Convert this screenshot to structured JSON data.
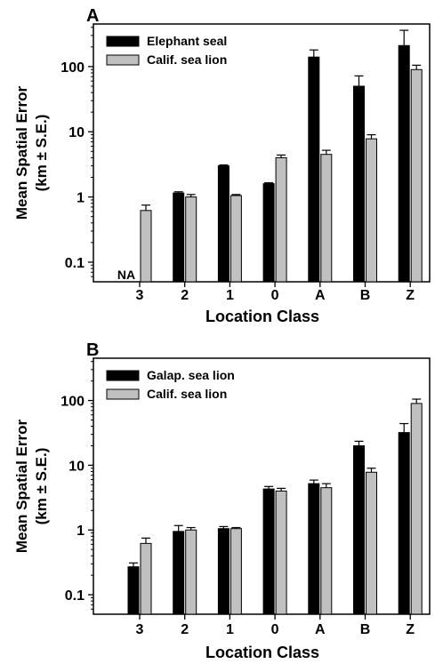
{
  "chart_data": [
    {
      "type": "bar",
      "panel_label": "A",
      "categories": [
        "3",
        "2",
        "1",
        "0",
        "A",
        "B",
        "Z"
      ],
      "xlabel": "Location Class",
      "ylabel": [
        "Mean Spatial Error",
        "(km ± S.E.)"
      ],
      "yscale": "log",
      "ylim": [
        0.05,
        450
      ],
      "yticks": [
        0.1,
        1,
        10,
        100
      ],
      "ytick_labels": [
        "0.1",
        "1",
        "10",
        "100"
      ],
      "legend_position": "top-left",
      "grid": false,
      "series": [
        {
          "name": "Elephant seal",
          "color": "#000000",
          "values": [
            null,
            1.15,
            3.0,
            1.6,
            140,
            50,
            210
          ],
          "errors": [
            null,
            0.05,
            0.1,
            0.05,
            40,
            22,
            150
          ]
        },
        {
          "name": "Calif. sea lion",
          "color": "#c0c0c0",
          "values": [
            0.62,
            1.0,
            1.05,
            4.0,
            4.5,
            7.8,
            90
          ],
          "errors": [
            0.13,
            0.09,
            0.04,
            0.4,
            0.7,
            1.2,
            15
          ]
        }
      ],
      "annotations": [
        {
          "category": "3",
          "series": "Elephant seal",
          "text": "NA"
        }
      ]
    },
    {
      "type": "bar",
      "panel_label": "B",
      "categories": [
        "3",
        "2",
        "1",
        "0",
        "A",
        "B",
        "Z"
      ],
      "xlabel": "Location Class",
      "ylabel": [
        "Mean Spatial Error",
        "(km ± S.E.)"
      ],
      "yscale": "log",
      "ylim": [
        0.05,
        450
      ],
      "yticks": [
        0.1,
        1,
        10,
        100
      ],
      "ytick_labels": [
        "0.1",
        "1",
        "10",
        "100"
      ],
      "legend_position": "top-left",
      "grid": false,
      "series": [
        {
          "name": "Galap. sea lion",
          "color": "#000000",
          "values": [
            0.27,
            0.95,
            1.05,
            4.3,
            5.2,
            20,
            32
          ],
          "errors": [
            0.04,
            0.22,
            0.08,
            0.4,
            0.7,
            3.5,
            12
          ]
        },
        {
          "name": "Calif. sea lion",
          "color": "#c0c0c0",
          "values": [
            0.62,
            1.0,
            1.05,
            4.0,
            4.5,
            7.8,
            90
          ],
          "errors": [
            0.13,
            0.09,
            0.04,
            0.4,
            0.7,
            1.2,
            15
          ]
        }
      ],
      "annotations": []
    }
  ]
}
